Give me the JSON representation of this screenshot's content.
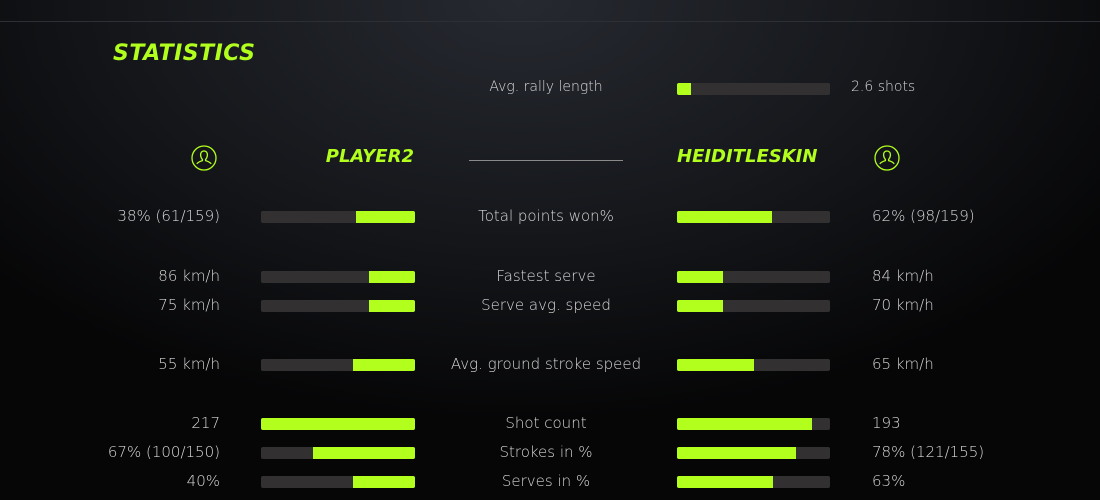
{
  "title": "STATISTICS",
  "accent": "#b2ff1e",
  "rally": {
    "label": "Avg. rally length",
    "value": "2.6 shots",
    "fraction": 0.09
  },
  "players": {
    "left": {
      "name": "PLAYER2",
      "icon": "user-circle-icon"
    },
    "right": {
      "name": "HEIDITLESKIN",
      "icon": "user-circle-icon"
    }
  },
  "stats": [
    {
      "label": "Total points won%",
      "left": "38% (61/159)",
      "right": "62% (98/159)",
      "left_fraction": 0.38,
      "right_fraction": 0.62
    },
    {
      "label": "Fastest serve",
      "left": "86 km/h",
      "right": "84 km/h",
      "left_fraction": 0.3,
      "right_fraction": 0.3
    },
    {
      "label": "Serve avg. speed",
      "left": "75 km/h",
      "right": "70 km/h",
      "left_fraction": 0.3,
      "right_fraction": 0.3
    },
    {
      "label": "Avg. ground stroke speed",
      "left": "55 km/h",
      "right": "65 km/h",
      "left_fraction": 0.4,
      "right_fraction": 0.5
    },
    {
      "label": "Shot count",
      "left": "217",
      "right": "193",
      "left_fraction": 1.0,
      "right_fraction": 0.88
    },
    {
      "label": "Strokes in %",
      "left": "67% (100/150)",
      "right": "78% (121/155)",
      "left_fraction": 0.66,
      "right_fraction": 0.78
    },
    {
      "label": "Serves in %",
      "left": "40%",
      "right": "63%",
      "left_fraction": 0.4,
      "right_fraction": 0.63
    }
  ]
}
